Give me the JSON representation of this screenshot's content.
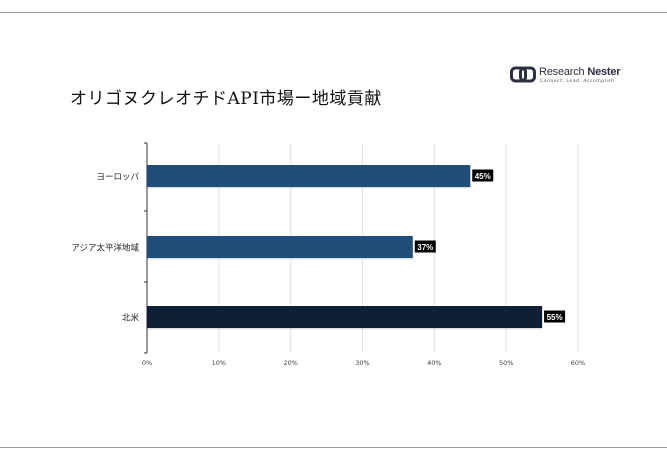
{
  "page": {
    "title": "オリゴヌクレオチドAPI市場ー地域貢献",
    "logo": {
      "name_light": "Research ",
      "name_bold": "Nester",
      "tagline": "Connect. Lead. Accomplish",
      "icon": "research-nester-logo-icon"
    }
  },
  "chart_data": {
    "type": "bar",
    "orientation": "horizontal",
    "categories": [
      "ヨーロッパ",
      "アジア太平洋地域",
      "北米"
    ],
    "values": [
      45,
      37,
      55
    ],
    "value_labels": [
      "45%",
      "37%",
      "55%"
    ],
    "bar_colors": [
      "#1f4e79",
      "#1f4e79",
      "#0f1f35"
    ],
    "xlim": [
      0,
      60
    ],
    "x_ticks": [
      0,
      10,
      20,
      30,
      40,
      50,
      60
    ],
    "x_tick_labels": [
      "0%",
      "10%",
      "20%",
      "30%",
      "40%",
      "50%",
      "60%"
    ],
    "grid": "vertical",
    "xlabel": "",
    "ylabel": ""
  }
}
